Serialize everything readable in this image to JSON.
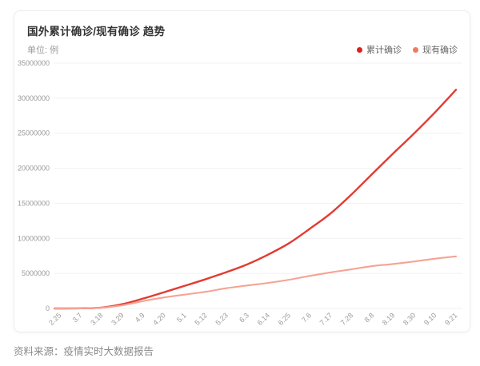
{
  "page": {
    "source_note": "资料来源：疫情实时大数据报告"
  },
  "chart_data": {
    "type": "line",
    "title": "国外累计确诊/现有确诊 趋势",
    "unit": "单位: 例",
    "xlabel": "",
    "ylabel": "",
    "categories": [
      "2.25",
      "3.7",
      "3.18",
      "3.29",
      "4.9",
      "4.20",
      "5.1",
      "5.12",
      "5.23",
      "6.3",
      "6.14",
      "6.25",
      "7.6",
      "7.17",
      "7.28",
      "8.8",
      "8.19",
      "8.30",
      "9.10",
      "9.21"
    ],
    "y_ticks": [
      0,
      5000000,
      10000000,
      15000000,
      20000000,
      25000000,
      30000000,
      35000000
    ],
    "ylim": [
      0,
      35000000
    ],
    "grid": true,
    "legend_position": "top-right",
    "colors": {
      "grid_line": "#f0f0f0",
      "axis_label": "#999999"
    },
    "series": [
      {
        "name": "累计确诊",
        "color": "#e23b33",
        "dot_color": "#d9231d",
        "width": 2.4,
        "values": [
          2700,
          21000,
          120000,
          610000,
          1430000,
          2330000,
          3250000,
          4180000,
          5200000,
          6320000,
          7710000,
          9330000,
          11400000,
          13600000,
          16300000,
          19250000,
          22150000,
          25000000,
          28000000,
          31200000
        ]
      },
      {
        "name": "现有确诊",
        "color": "#f5a394",
        "dot_color": "#ee7a62",
        "width": 2.1,
        "values": [
          2300,
          17000,
          98000,
          460000,
          1060000,
          1570000,
          1980000,
          2380000,
          2900000,
          3280000,
          3650000,
          4100000,
          4650000,
          5150000,
          5600000,
          6050000,
          6350000,
          6700000,
          7100000,
          7430000
        ]
      }
    ]
  }
}
